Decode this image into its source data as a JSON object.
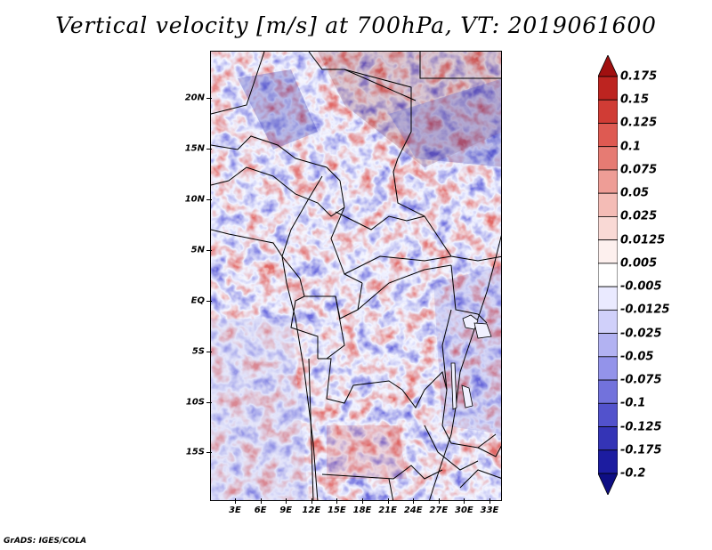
{
  "title": "Vertical velocity [m/s] at 700hPa, VT: 2019061600",
  "credit": "GrADS: IGES/COLA",
  "map": {
    "lat_labels": [
      "20N",
      "15N",
      "10N",
      "5N",
      "EQ",
      "5S",
      "10S",
      "15S"
    ],
    "lon_labels": [
      "3E",
      "6E",
      "9E",
      "12E",
      "15E",
      "18E",
      "21E",
      "24E",
      "27E",
      "30E",
      "33E"
    ]
  },
  "colorbar": {
    "labels": [
      "0.175",
      "0.15",
      "0.125",
      "0.1",
      "0.075",
      "0.05",
      "0.025",
      "0.0125",
      "0.005",
      "-0.005",
      "-0.0125",
      "-0.025",
      "-0.05",
      "-0.075",
      "-0.1",
      "-0.125",
      "-0.175",
      "-0.2"
    ],
    "colors": [
      "#a01010",
      "#bd2420",
      "#d03c35",
      "#de5a52",
      "#e67b73",
      "#ee9d96",
      "#f4bcb6",
      "#f9d9d5",
      "#fdf0ee",
      "#ffffff",
      "#eaeaff",
      "#d0d0fa",
      "#b2b2f2",
      "#9393ea",
      "#7272dc",
      "#5252cc",
      "#3434b6",
      "#1c1ca0",
      "#0e0e84"
    ]
  }
}
